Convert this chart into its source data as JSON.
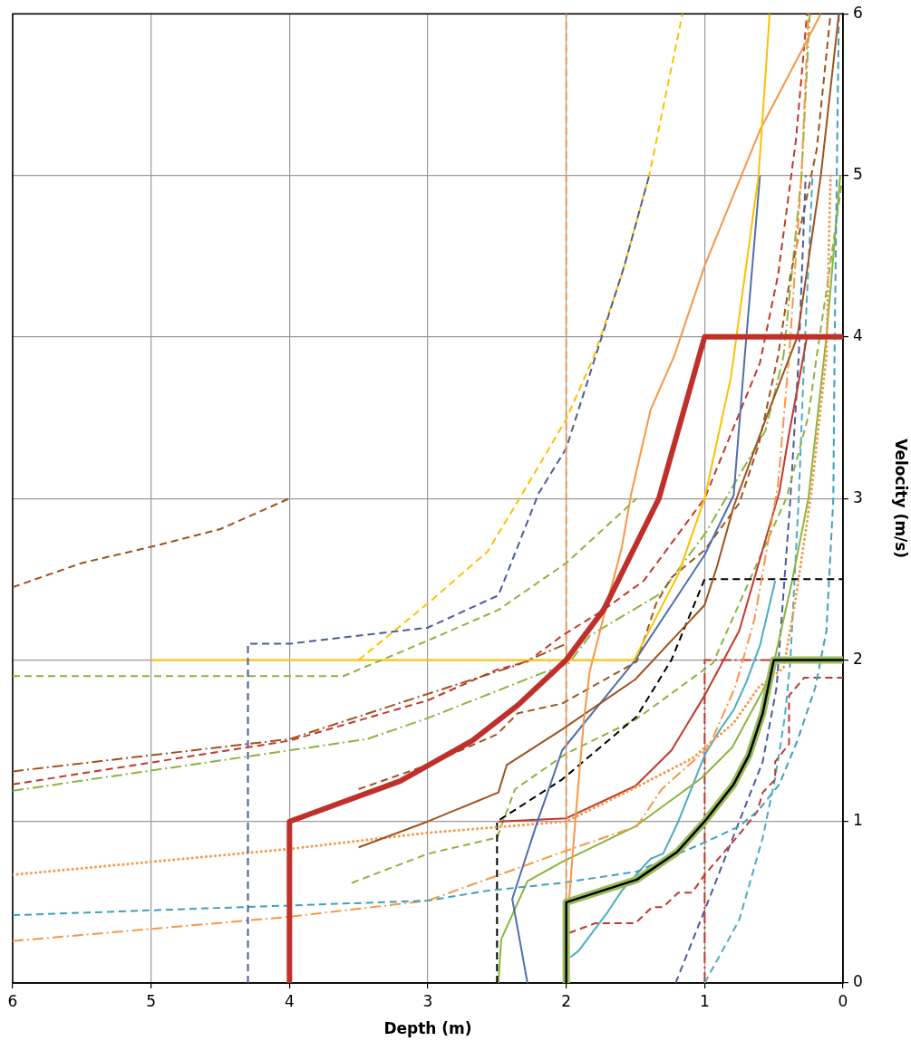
{
  "chart_data": {
    "type": "line",
    "xlabel": "Depth (m)",
    "ylabel": "Velocity (m/s)",
    "xlim": [
      6,
      0
    ],
    "ylim": [
      0,
      6
    ],
    "xticks": [
      0,
      1,
      2,
      3,
      4,
      5,
      6
    ],
    "yticks": [
      0,
      1,
      2,
      3,
      4,
      5,
      6
    ],
    "grid": true,
    "series": [
      {
        "color": "#000000",
        "line_style": "solid",
        "x": [
          2,
          2,
          1.49,
          1.2,
          1,
          0.79,
          0.68,
          0.58,
          0.5,
          0
        ],
        "values": [
          0,
          0.5,
          0.64,
          0.81,
          1,
          1.23,
          1.41,
          1.67,
          2,
          2
        ]
      },
      {
        "color": "#9bbb59",
        "line_style": "solid",
        "x": [
          2,
          2,
          1.49,
          1.2,
          1,
          0.79,
          0.68,
          0.58,
          0.5,
          0
        ],
        "values": [
          0,
          0.5,
          0.64,
          0.81,
          1,
          1.23,
          1.41,
          1.67,
          2,
          2
        ]
      },
      {
        "color": "#c0302b",
        "line_style": "solid",
        "x": [
          4,
          4,
          3.2,
          2.68,
          2.35,
          2,
          1.73,
          1.33,
          1,
          0
        ],
        "values": [
          0,
          1,
          1.25,
          1.5,
          1.72,
          2,
          2.31,
          3,
          4,
          4
        ]
      },
      {
        "color": "#f79646",
        "line_style": "dashed",
        "x": [
          2,
          2
        ],
        "values": [
          0,
          6
        ]
      },
      {
        "color": "#4a5c9c",
        "line_style": "dashed",
        "x": [
          4.3,
          4.3,
          4,
          3,
          2.49,
          2.2,
          2,
          1.58,
          1.4
        ],
        "values": [
          0,
          2.1,
          2.1,
          2.2,
          2.4,
          3.03,
          3.31,
          4.44,
          5
        ]
      },
      {
        "color": "#ffc000",
        "line_style": "dashed",
        "x": [
          3.5,
          3,
          2.57,
          2.33,
          2,
          1.8,
          1.6,
          1.4,
          1.16
        ],
        "values": [
          2,
          2.35,
          2.67,
          3.01,
          3.49,
          3.88,
          4.38,
          5,
          6
        ]
      },
      {
        "color": "#8cb43e",
        "line_style": "dashed",
        "x": [
          6,
          3.61,
          3,
          2.49,
          2,
          1.49
        ],
        "values": [
          1.9,
          1.9,
          2.12,
          2.31,
          2.6,
          3
        ]
      },
      {
        "color": "#a0521e",
        "line_style": "dashed",
        "x": [
          6,
          5.5,
          5,
          4.5,
          4
        ],
        "values": [
          2.45,
          2.6,
          2.7,
          2.81,
          3
        ]
      },
      {
        "color": "#ffc000",
        "line_style": "solid",
        "x": [
          5,
          1.51,
          1.19,
          1,
          0.81,
          0.61,
          0.53
        ],
        "values": [
          2,
          2,
          2.53,
          3,
          3.75,
          5,
          6
        ]
      },
      {
        "color": "#f79646",
        "line_style": "solid",
        "x": [
          1.98,
          1.93,
          1.87,
          1.83,
          1.69,
          1.6,
          1.53,
          1.39,
          1.22,
          1,
          0.6,
          0.16
        ],
        "values": [
          0.51,
          1.05,
          1.65,
          1.93,
          2.4,
          2.69,
          3.03,
          3.55,
          3.88,
          4.44,
          5.28,
          6
        ]
      },
      {
        "color": "#a0521e",
        "line_style": "solid",
        "x": [
          3.5,
          3,
          2.49,
          2.43,
          2.03,
          1.5,
          1,
          0.91,
          0.79,
          0.55,
          0.33,
          0.16,
          0.03
        ],
        "values": [
          0.84,
          1,
          1.18,
          1.35,
          1.57,
          1.88,
          2.34,
          2.58,
          2.95,
          3.51,
          4,
          5,
          6
        ]
      },
      {
        "color": "#4f6fad",
        "line_style": "solid",
        "x": [
          2.28,
          2.39,
          2.2,
          2.11,
          2.03,
          1.5,
          1,
          0.79,
          0.71,
          0.6
        ],
        "values": [
          0,
          0.52,
          1.02,
          1.24,
          1.44,
          2,
          2.65,
          3.02,
          3.88,
          5
        ]
      },
      {
        "color": "#3fa0bd",
        "line_style": "dashed",
        "x": [
          6,
          4,
          3,
          2.58,
          2.03,
          1.49,
          1,
          0.75,
          0.61,
          0.46,
          0.33,
          0.2,
          0.12,
          0.07,
          0.06,
          0.03
        ],
        "values": [
          0.42,
          0.48,
          0.51,
          0.57,
          0.62,
          0.69,
          0.87,
          0.97,
          1.07,
          1.23,
          1.5,
          1.83,
          2.18,
          3,
          4,
          6
        ]
      },
      {
        "color": "#f79646",
        "line_style": "dashdot",
        "x": [
          6,
          4,
          3,
          2.03,
          1.49,
          1.31,
          0.97,
          0.78,
          0.64,
          0.47,
          0.39,
          0.3,
          0.25
        ],
        "values": [
          0.26,
          0.41,
          0.51,
          0.81,
          0.97,
          1.2,
          1.46,
          1.83,
          2.25,
          3.08,
          3.88,
          5,
          6
        ]
      },
      {
        "color": "#f79646",
        "line_style": "dotted",
        "x": [
          6,
          4,
          3,
          2,
          1.5,
          1.09,
          0.79,
          0.61,
          0.43,
          0.34,
          0.23,
          0.12,
          0.09
        ],
        "values": [
          0.67,
          0.83,
          0.93,
          1,
          1.21,
          1.39,
          1.61,
          1.83,
          1.95,
          2.39,
          3.03,
          3.88,
          5
        ]
      },
      {
        "color": "#c0392b",
        "line_style": "solid",
        "x": [
          2.49,
          2,
          1.5,
          1.24,
          1,
          0.75,
          0.46,
          0.39,
          0.26
        ],
        "values": [
          1,
          1.02,
          1.22,
          1.44,
          1.78,
          2.18,
          3.04,
          3.4,
          4
        ]
      },
      {
        "color": "#000000",
        "line_style": "dashed",
        "x": [
          2.5,
          2.5,
          2.03,
          1.49,
          1.24,
          1,
          0
        ],
        "values": [
          0,
          1,
          1.26,
          1.65,
          2,
          2.5,
          2.5
        ]
      },
      {
        "color": "#8cb43e",
        "line_style": "dashed",
        "x": [
          3.55,
          3,
          2.5,
          2.37,
          2,
          1.5,
          0.94,
          0.63,
          0.41,
          0.25,
          0.19,
          0.1,
          0.01
        ],
        "values": [
          0.62,
          0.8,
          0.9,
          1.2,
          1.42,
          1.63,
          1.98,
          2.58,
          3,
          3.51,
          3.88,
          4.4,
          4.95
        ]
      },
      {
        "color": "#8cb43e",
        "line_style": "solid",
        "x": [
          2.49,
          2.47,
          2.37,
          2.28,
          2.03,
          1.5,
          1.02,
          0.8,
          0.58,
          0.5,
          0.37,
          0.25,
          0.12,
          0.02
        ],
        "values": [
          0,
          0.27,
          0.46,
          0.63,
          0.75,
          0.97,
          1.27,
          1.46,
          1.81,
          1.98,
          2.48,
          3,
          4,
          5
        ]
      },
      {
        "color": "#4bacc6",
        "line_style": "solid",
        "x": [
          1.97,
          1.91,
          1.7,
          1.6,
          1.39,
          1.3,
          1.19,
          1,
          0.88,
          0.79,
          0.7,
          0.6,
          0.49
        ],
        "values": [
          0.16,
          0.2,
          0.44,
          0.57,
          0.77,
          0.8,
          1,
          1.41,
          1.58,
          1.69,
          1.86,
          2.09,
          2.49
        ]
      },
      {
        "color": "#c0392b",
        "line_style": "dashed",
        "x": [
          1.98,
          1.79,
          1.5,
          1.38,
          1.3,
          1.19,
          1.09,
          1,
          0.75,
          0.62,
          0.58,
          0.49,
          0.49,
          0.39,
          0.39,
          0.28,
          0
        ],
        "values": [
          0.31,
          0.37,
          0.37,
          0.47,
          0.47,
          0.56,
          0.56,
          0.67,
          0.92,
          1.06,
          1.18,
          1.26,
          1.37,
          1.48,
          1.78,
          1.89,
          1.89
        ]
      },
      {
        "color": "#4a5c9c",
        "line_style": "dashed",
        "x": [
          1.21,
          1,
          0.75,
          0.58,
          0.48,
          0.38,
          0.32,
          0.27
        ],
        "values": [
          0,
          0.45,
          1,
          1.37,
          1.83,
          3,
          3.88,
          5
        ]
      },
      {
        "color": "#4bacc6",
        "line_style": "dashed",
        "x": [
          1,
          0.75,
          0.58,
          0.49,
          0.42,
          0.38,
          0.32,
          0.28,
          0.22
        ],
        "values": [
          0,
          0.39,
          0.9,
          1.27,
          1.65,
          2,
          3,
          3.88,
          5
        ]
      },
      {
        "color": "#a0521e",
        "line_style": "dashed",
        "x": [
          3.5,
          3,
          2.5,
          2.35,
          2.03,
          1.49,
          1.35,
          1.24,
          1,
          0.75,
          0.61,
          0.47,
          0.38,
          0.19,
          0.09
        ],
        "values": [
          1.2,
          1.35,
          1.54,
          1.67,
          1.73,
          1.99,
          2.35,
          2.51,
          2.68,
          2.97,
          3.33,
          3.88,
          4.38,
          5.16,
          6
        ]
      },
      {
        "color": "#a0521e",
        "line_style": "dashdot",
        "x": [
          6,
          4,
          3,
          2.35,
          2
        ],
        "values": [
          1.31,
          1.51,
          1.79,
          1.97,
          2.1
        ]
      },
      {
        "color": "#c0392b",
        "line_style": "dashed",
        "x": [
          6,
          4,
          3,
          2.5,
          2.28,
          2.03,
          1.73,
          1.44,
          1,
          0.6,
          0.47,
          0.34,
          0.26
        ],
        "values": [
          1.23,
          1.5,
          1.75,
          1.94,
          1.99,
          2.15,
          2.31,
          2.49,
          3,
          3.84,
          4.38,
          5.22,
          6
        ]
      },
      {
        "color": "#8cb43e",
        "line_style": "dashdot",
        "x": [
          6,
          3.44,
          3,
          2.17,
          1.98,
          1.83,
          1.32,
          0.99,
          0.56,
          0.43,
          0.3,
          0.24
        ],
        "values": [
          1.19,
          1.51,
          1.64,
          1.92,
          1.98,
          2.15,
          2.41,
          2.79,
          3.42,
          3.88,
          5,
          6
        ]
      },
      {
        "color": "#c0392b",
        "line_style": "dashdot",
        "x": [
          1,
          1,
          0.52
        ],
        "values": [
          0,
          2,
          2
        ]
      }
    ]
  }
}
